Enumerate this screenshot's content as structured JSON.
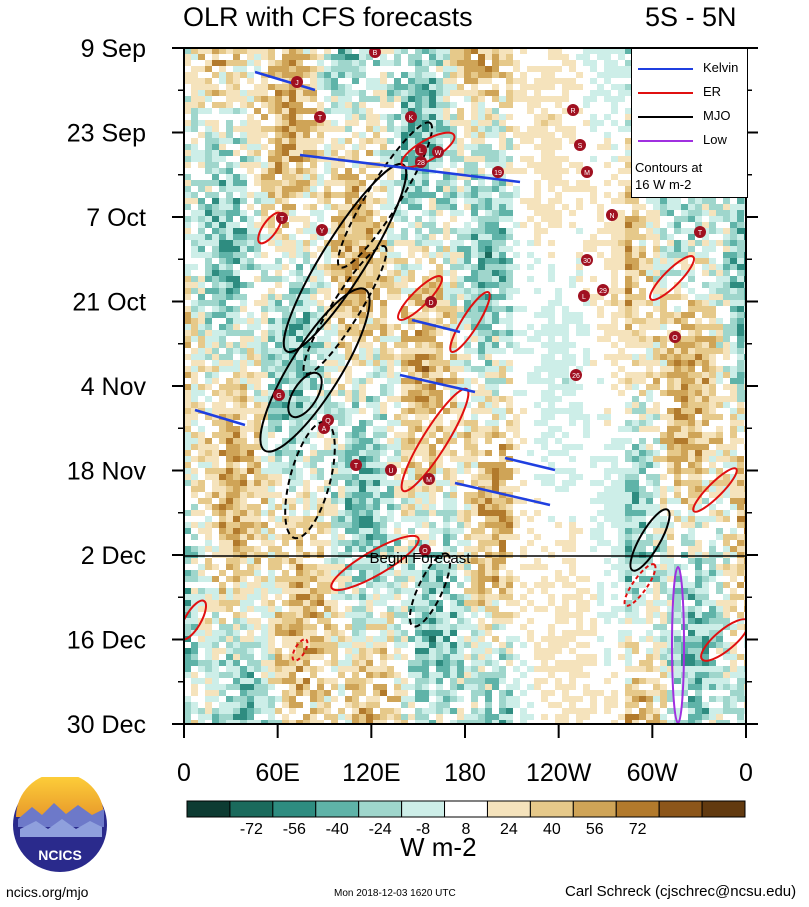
{
  "header": {
    "title": "OLR with CFS forecasts",
    "region": "5S - 5N"
  },
  "chart_data": {
    "type": "heatmap",
    "title": "OLR with CFS forecasts",
    "subtitle": "5S - 5N",
    "xlabel": "",
    "ylabel": "",
    "xticks": [
      "0",
      "60E",
      "120E",
      "180",
      "120W",
      "60W",
      "0"
    ],
    "yticks": [
      "9 Sep",
      "23 Sep",
      "7 Oct",
      "21 Oct",
      "4 Nov",
      "18 Nov",
      "2 Dec",
      "16 Dec",
      "30 Dec"
    ],
    "xlim_deg": [
      0,
      360
    ],
    "time_range": [
      "9 Sep",
      "30 Dec"
    ],
    "forecast_start": "2 Dec",
    "forecast_label": "Begin Forecast",
    "contour_interval": "16 W m-2",
    "colorbar": {
      "units": "W m-2",
      "ticks": [
        "-72",
        "-56",
        "-40",
        "-24",
        "-8",
        "8",
        "24",
        "40",
        "56",
        "72"
      ],
      "colors": [
        "#0d3b32",
        "#1a6a5c",
        "#2e8c80",
        "#5fb3a8",
        "#9fd6cc",
        "#cdeee8",
        "#ffffff",
        "#f5e3bc",
        "#e6c98a",
        "#cfa457",
        "#b27a2c",
        "#8c561a",
        "#623a10"
      ]
    },
    "legend": [
      {
        "name": "Kelvin",
        "color": "#1f3fe0"
      },
      {
        "name": "ER",
        "color": "#e01010"
      },
      {
        "name": "MJO",
        "color": "#000000"
      },
      {
        "name": "Low",
        "color": "#a030e0"
      }
    ],
    "legend_note": [
      "Contours at",
      "16 W m-2"
    ],
    "storm_markers": [
      "B",
      "J",
      "T",
      "K",
      "L",
      "28",
      "W",
      "19",
      "R",
      "S",
      "M",
      "N",
      "T",
      "30",
      "29",
      "L",
      "T",
      "Y",
      "D",
      "Q",
      "A",
      "G",
      "T",
      "U",
      "M",
      "O",
      "26",
      "O"
    ]
  },
  "footer": {
    "website": "ncics.org/mjo",
    "timestamp": "Mon 2018-12-03 1620 UTC",
    "author": "Carl Schreck (cjschrec@ncsu.edu)",
    "logo_text": "NCICS"
  }
}
